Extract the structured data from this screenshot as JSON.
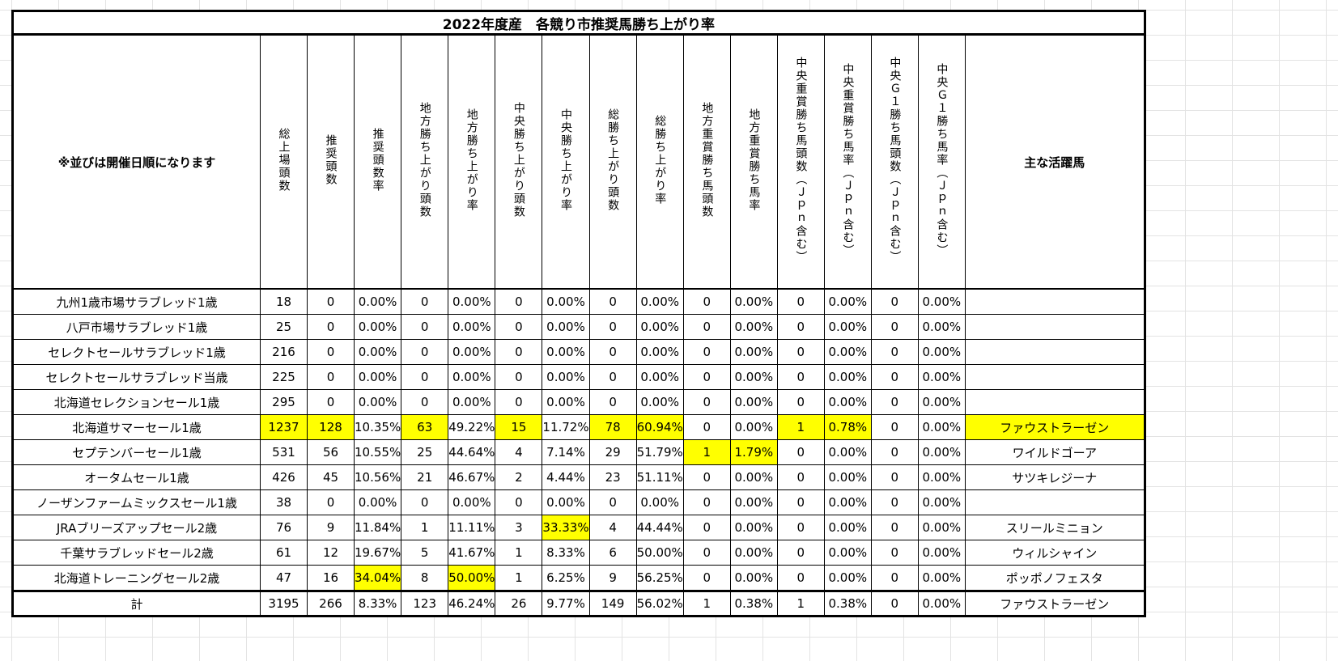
{
  "title": "2022年度産　各競り市推奨馬勝ち上がり率",
  "table": {
    "header": [
      "※並びは開催日順になります",
      "総上場頭数",
      "推奨頭数",
      "推奨頭数率",
      "地方勝ち上がり頭数",
      "地方勝ち上がり率",
      "中央勝ち上がり頭数",
      "中央勝ち上がり率",
      "総勝ち上がり頭数",
      "総勝ち上がり率",
      "地方重賞勝ち馬頭数",
      "地方重賞勝ち馬率",
      "中央重賞勝ち馬頭数（Ｊｐｎ含む）",
      "中央重賞勝ち馬率（Ｊｐｎ含む）",
      "中央Ｇ１勝ち馬頭数（Ｊｐｎ含む）",
      "中央Ｇ１勝ち馬率（Ｊｐｎ含む）",
      "主な活躍馬"
    ],
    "rows": [
      [
        "九州1歳市場サラブレッド1歳",
        "18",
        "0",
        "0.00%",
        "0",
        "0.00%",
        "0",
        "0.00%",
        "0",
        "0.00%",
        "0",
        "0.00%",
        "0",
        "0.00%",
        "0",
        "0.00%"
      ],
      [
        "八戸市場サラブレッド1歳",
        "25",
        "0",
        "0.00%",
        "0",
        "0.00%",
        "0",
        "0.00%",
        "0",
        "0.00%",
        "0",
        "0.00%",
        "0",
        "0.00%",
        "0",
        "0.00%"
      ],
      [
        "セレクトセールサラブレッド1歳",
        "216",
        "0",
        "0.00%",
        "0",
        "0.00%",
        "0",
        "0.00%",
        "0",
        "0.00%",
        "0",
        "0.00%",
        "0",
        "0.00%",
        "0",
        "0.00%"
      ],
      [
        "セレクトセールサラブレッド当歳",
        "225",
        "0",
        "0.00%",
        "0",
        "0.00%",
        "0",
        "0.00%",
        "0",
        "0.00%",
        "0",
        "0.00%",
        "0",
        "0.00%",
        "0",
        "0.00%"
      ],
      [
        "北海道セレクションセール1歳",
        "295",
        "0",
        "0.00%",
        "0",
        "0.00%",
        "0",
        "0.00%",
        "0",
        "0.00%",
        "0",
        "0.00%",
        "0",
        "0.00%",
        "0",
        "0.00%"
      ],
      [
        "北海道サマーセール1歳",
        "1237",
        "128",
        "10.35%",
        "63",
        "49.22%",
        "15",
        "11.72%",
        "78",
        "60.94%",
        "0",
        "0.00%",
        "1",
        "0.78%",
        "0",
        "0.00%",
        "ファウストラーゼン"
      ],
      [
        "セプテンバーセール1歳",
        "531",
        "56",
        "10.55%",
        "25",
        "44.64%",
        "4",
        "7.14%",
        "29",
        "51.79%",
        "1",
        "1.79%",
        "0",
        "0.00%",
        "0",
        "0.00%",
        "ワイルドゴーア"
      ],
      [
        "オータムセール1歳",
        "426",
        "45",
        "10.56%",
        "21",
        "46.67%",
        "2",
        "4.44%",
        "23",
        "51.11%",
        "0",
        "0.00%",
        "0",
        "0.00%",
        "0",
        "0.00%",
        "サツキレジーナ"
      ],
      [
        "ノーザンファームミックスセール1歳",
        "38",
        "0",
        "0.00%",
        "0",
        "0.00%",
        "0",
        "0.00%",
        "0",
        "0.00%",
        "0",
        "0.00%",
        "0",
        "0.00%",
        "0",
        "0.00%"
      ],
      [
        "JRAブリーズアップセール2歳",
        "76",
        "9",
        "11.84%",
        "1",
        "11.11%",
        "3",
        "33.33%",
        "4",
        "44.44%",
        "0",
        "0.00%",
        "0",
        "0.00%",
        "0",
        "0.00%",
        "スリールミニョン"
      ],
      [
        "千葉サラブレッドセール2歳",
        "61",
        "12",
        "19.67%",
        "5",
        "41.67%",
        "1",
        "8.33%",
        "6",
        "50.00%",
        "0",
        "0.00%",
        "0",
        "0.00%",
        "0",
        "0.00%",
        "ウィルシャイン"
      ],
      [
        "北海道トレーニングセール2歳",
        "47",
        "16",
        "34.04%",
        "8",
        "50.00%",
        "1",
        "6.25%",
        "9",
        "56.25%",
        "0",
        "0.00%",
        "0",
        "0.00%",
        "0",
        "0.00%",
        "ポッポノフェスタ"
      ]
    ],
    "total": [
      "計",
      "3195",
      "266",
      "8.33%",
      "123",
      "46.24%",
      "26",
      "9.77%",
      "149",
      "56.02%",
      "1",
      "0.38%",
      "1",
      "0.38%",
      "0",
      "0.00%",
      "ファウストラーゼン"
    ]
  }
}
